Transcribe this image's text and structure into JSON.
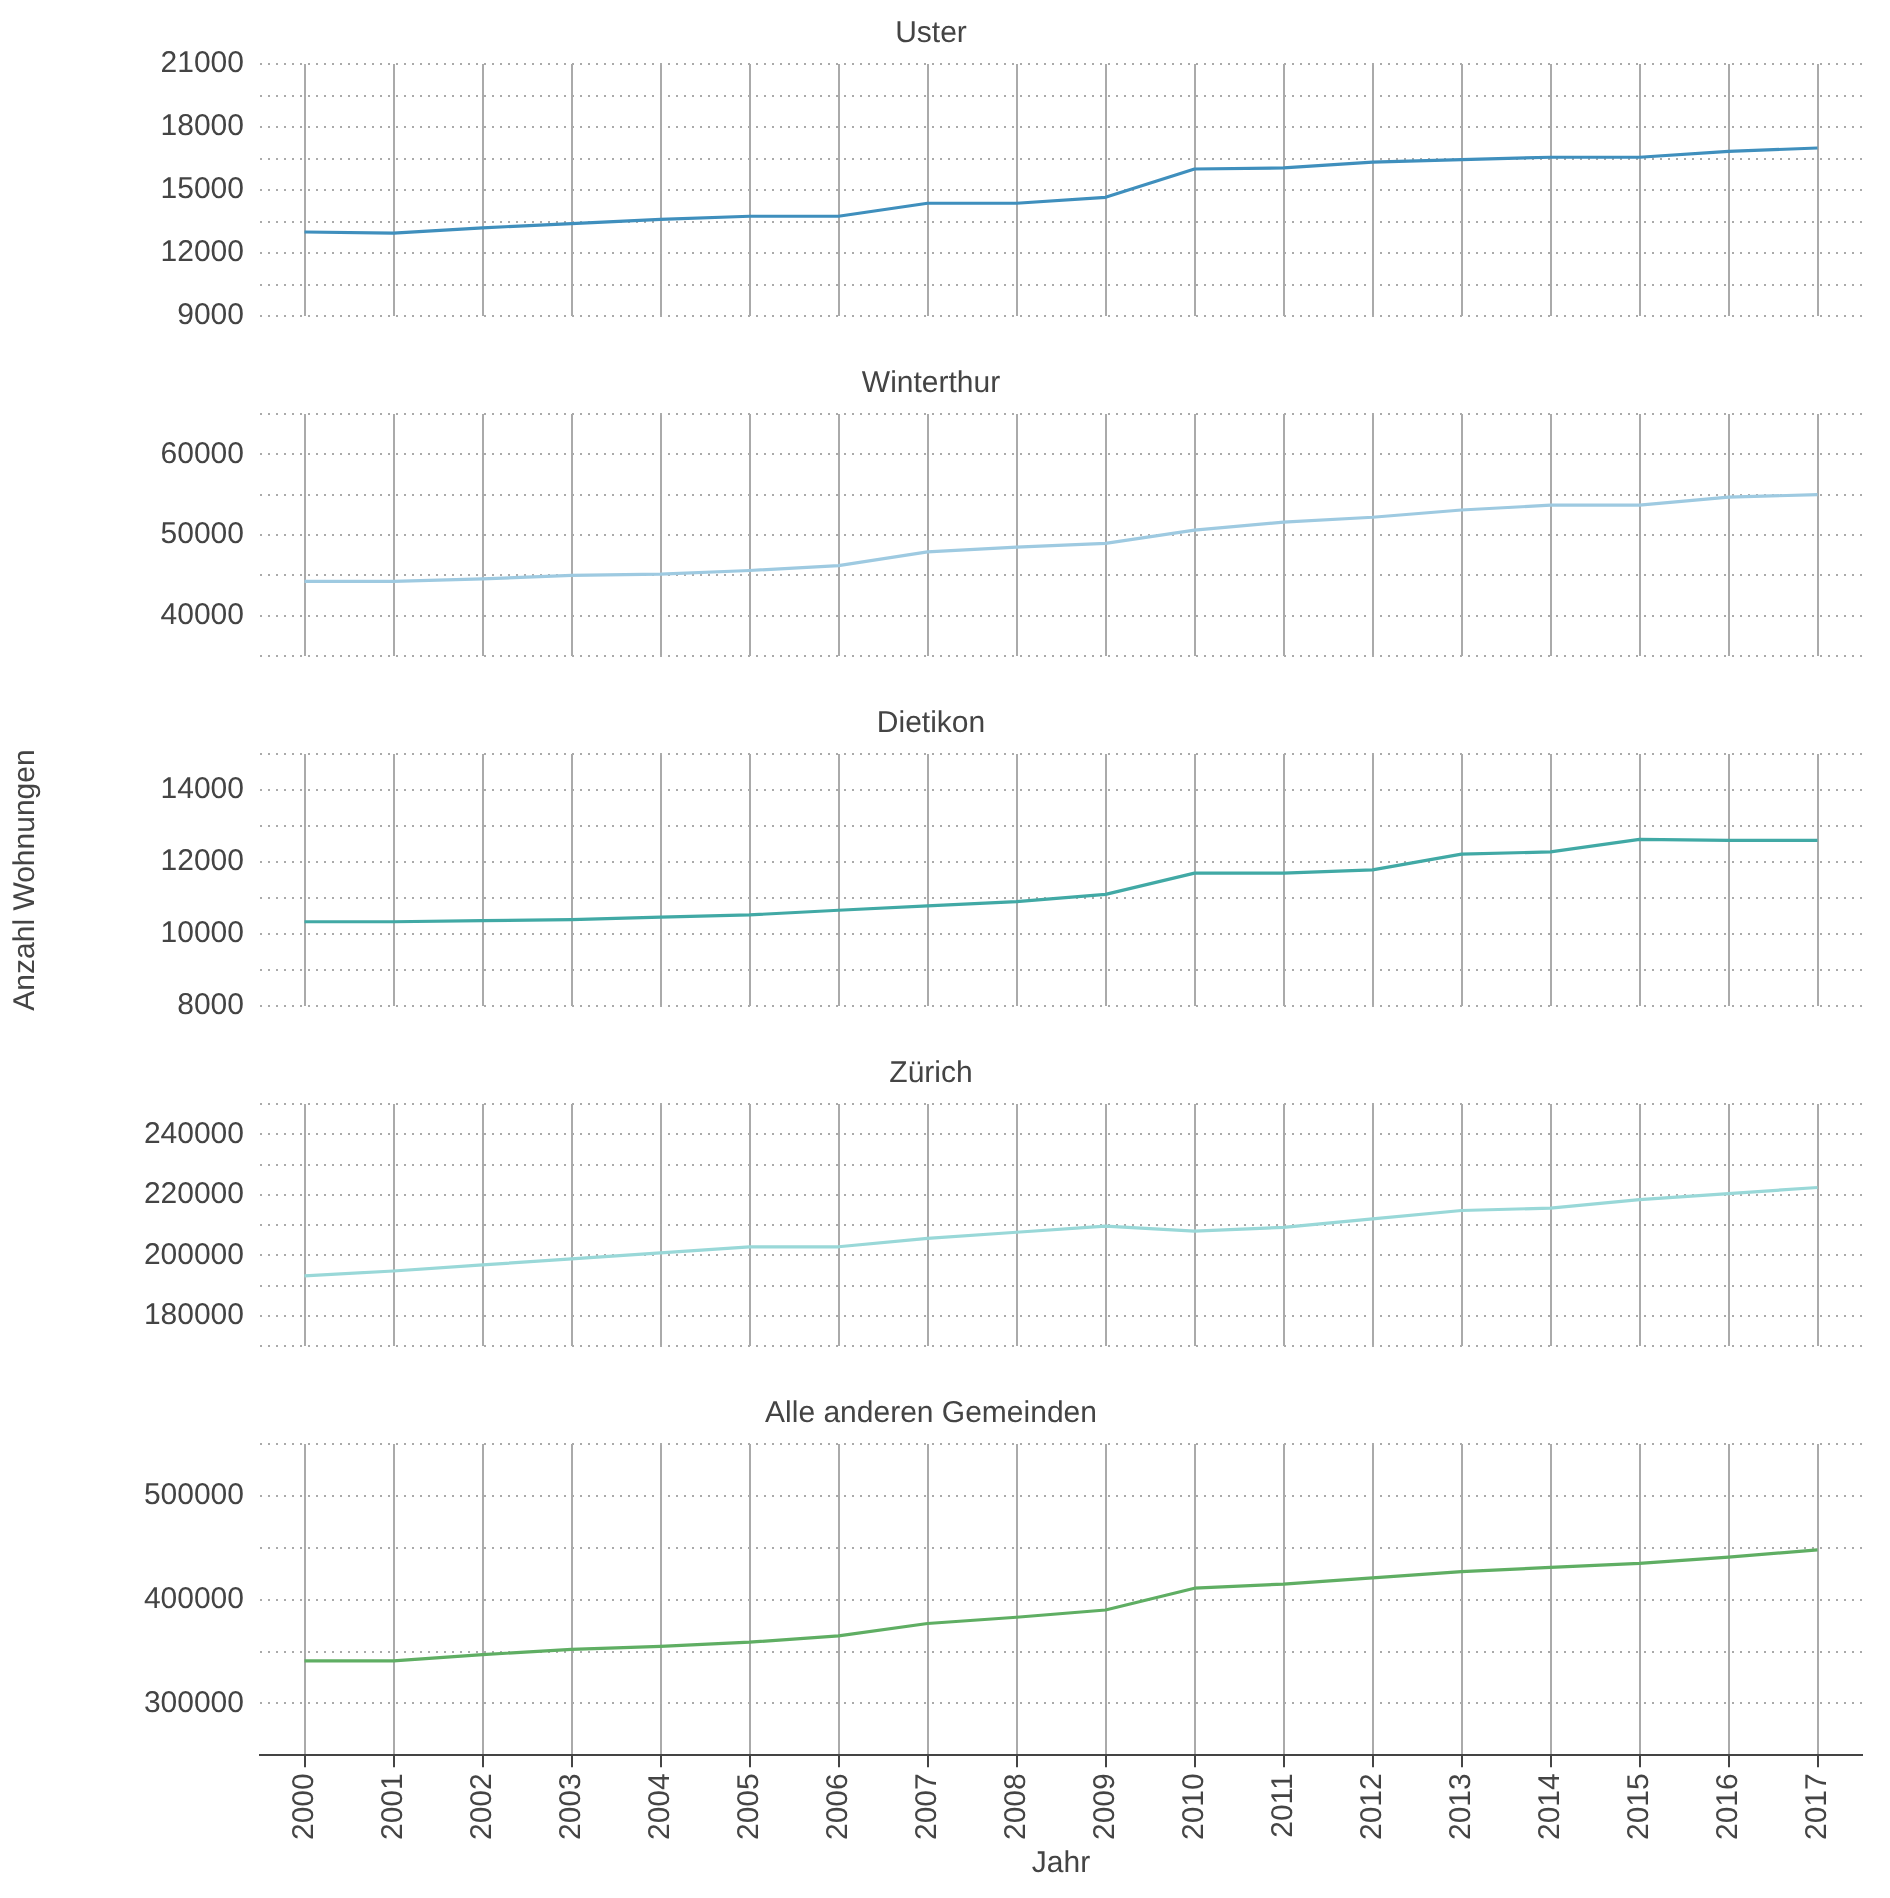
{
  "chart_data": [
    {
      "type": "line",
      "title": "Uster",
      "categories": [
        "2000",
        "2001",
        "2002",
        "2003",
        "2004",
        "2005",
        "2006",
        "2007",
        "2008",
        "2009",
        "2010",
        "2011",
        "2012",
        "2013",
        "2014",
        "2015",
        "2016",
        "2017"
      ],
      "series": [
        {
          "color": "#3f8fbd",
          "values": [
            13000,
            12950,
            13200,
            13400,
            13600,
            13750,
            13750,
            14370,
            14370,
            14650,
            16000,
            16050,
            16330,
            16450,
            16560,
            16560,
            16840,
            17000
          ]
        }
      ],
      "ylim": [
        9000,
        21000
      ],
      "yticks": [
        9000,
        {
          "value": 10500,
          "label": null
        },
        12000,
        {
          "value": 13500,
          "label": null
        },
        15000,
        {
          "value": 16500,
          "label": null
        },
        18000,
        {
          "value": 19500,
          "label": null
        },
        21000
      ],
      "grid": true,
      "tick_labels": "y"
    },
    {
      "type": "line",
      "title": "Winterthur",
      "categories": [
        "2000",
        "2001",
        "2002",
        "2003",
        "2004",
        "2005",
        "2006",
        "2007",
        "2008",
        "2009",
        "2010",
        "2011",
        "2012",
        "2013",
        "2014",
        "2015",
        "2016",
        "2017"
      ],
      "series": [
        {
          "color": "#9ecae1",
          "values": [
            44260,
            44260,
            44560,
            45000,
            45150,
            45600,
            46200,
            47900,
            48500,
            48970,
            50600,
            51600,
            52200,
            53100,
            53700,
            53700,
            54700,
            55000
          ]
        }
      ],
      "ylim": [
        35000,
        65000
      ],
      "yticks": [
        {
          "value": 35000,
          "label": null
        },
        40000,
        {
          "value": 45000,
          "label": null
        },
        50000,
        {
          "value": 55000,
          "label": null
        },
        60000,
        {
          "value": 65000,
          "label": null
        }
      ],
      "grid": true,
      "tick_labels": "y"
    },
    {
      "type": "line",
      "title": "Dietikon",
      "ylabel": "Anzahl Wohnungen",
      "categories": [
        "2000",
        "2001",
        "2002",
        "2003",
        "2004",
        "2005",
        "2006",
        "2007",
        "2008",
        "2009",
        "2010",
        "2011",
        "2012",
        "2013",
        "2014",
        "2015",
        "2016",
        "2017"
      ],
      "series": [
        {
          "color": "#41a9a5",
          "values": [
            10340,
            10340,
            10370,
            10400,
            10470,
            10530,
            10660,
            10780,
            10900,
            11100,
            11690,
            11690,
            11780,
            12220,
            12280,
            12630,
            12600,
            12600
          ]
        }
      ],
      "ylim": [
        8000,
        15000
      ],
      "yticks": [
        8000,
        {
          "value": 9000,
          "label": null
        },
        10000,
        {
          "value": 11000,
          "label": null
        },
        12000,
        {
          "value": 13000,
          "label": null
        },
        14000,
        {
          "value": 15000,
          "label": null
        }
      ],
      "grid": true,
      "tick_labels": "y"
    },
    {
      "type": "line",
      "title": "Zürich",
      "categories": [
        "2000",
        "2001",
        "2002",
        "2003",
        "2004",
        "2005",
        "2006",
        "2007",
        "2008",
        "2009",
        "2010",
        "2011",
        "2012",
        "2013",
        "2014",
        "2015",
        "2016",
        "2017"
      ],
      "series": [
        {
          "color": "#99d8d8",
          "values": [
            193200,
            194800,
            196800,
            198800,
            200800,
            202800,
            202800,
            205600,
            207600,
            209600,
            208000,
            209200,
            212000,
            214800,
            215600,
            218400,
            220400,
            222400
          ]
        }
      ],
      "ylim": [
        170000,
        250000
      ],
      "yticks": [
        {
          "value": 170000,
          "label": null
        },
        180000,
        {
          "value": 190000,
          "label": null
        },
        200000,
        {
          "value": 210000,
          "label": null
        },
        220000,
        {
          "value": 230000,
          "label": null
        },
        240000,
        {
          "value": 250000,
          "label": null
        }
      ],
      "grid": true,
      "tick_labels": "y"
    },
    {
      "type": "line",
      "title": "Alle anderen Gemeinden",
      "xlabel": "Jahr",
      "categories": [
        "2000",
        "2001",
        "2002",
        "2003",
        "2004",
        "2005",
        "2006",
        "2007",
        "2008",
        "2009",
        "2010",
        "2011",
        "2012",
        "2013",
        "2014",
        "2015",
        "2016",
        "2017"
      ],
      "series": [
        {
          "color": "#5fae63",
          "values": [
            341000,
            341000,
            347000,
            352000,
            355000,
            359000,
            365000,
            377000,
            383000,
            390000,
            411000,
            415000,
            421000,
            427000,
            431000,
            435000,
            441000,
            448000
          ]
        }
      ],
      "ylim": [
        250000,
        550000
      ],
      "yticks": [
        {
          "value": 250000,
          "label": null
        },
        300000,
        {
          "value": 350000,
          "label": null
        },
        400000,
        {
          "value": 450000,
          "label": null
        },
        500000,
        {
          "value": 550000,
          "label": null
        }
      ],
      "grid": true
    }
  ]
}
